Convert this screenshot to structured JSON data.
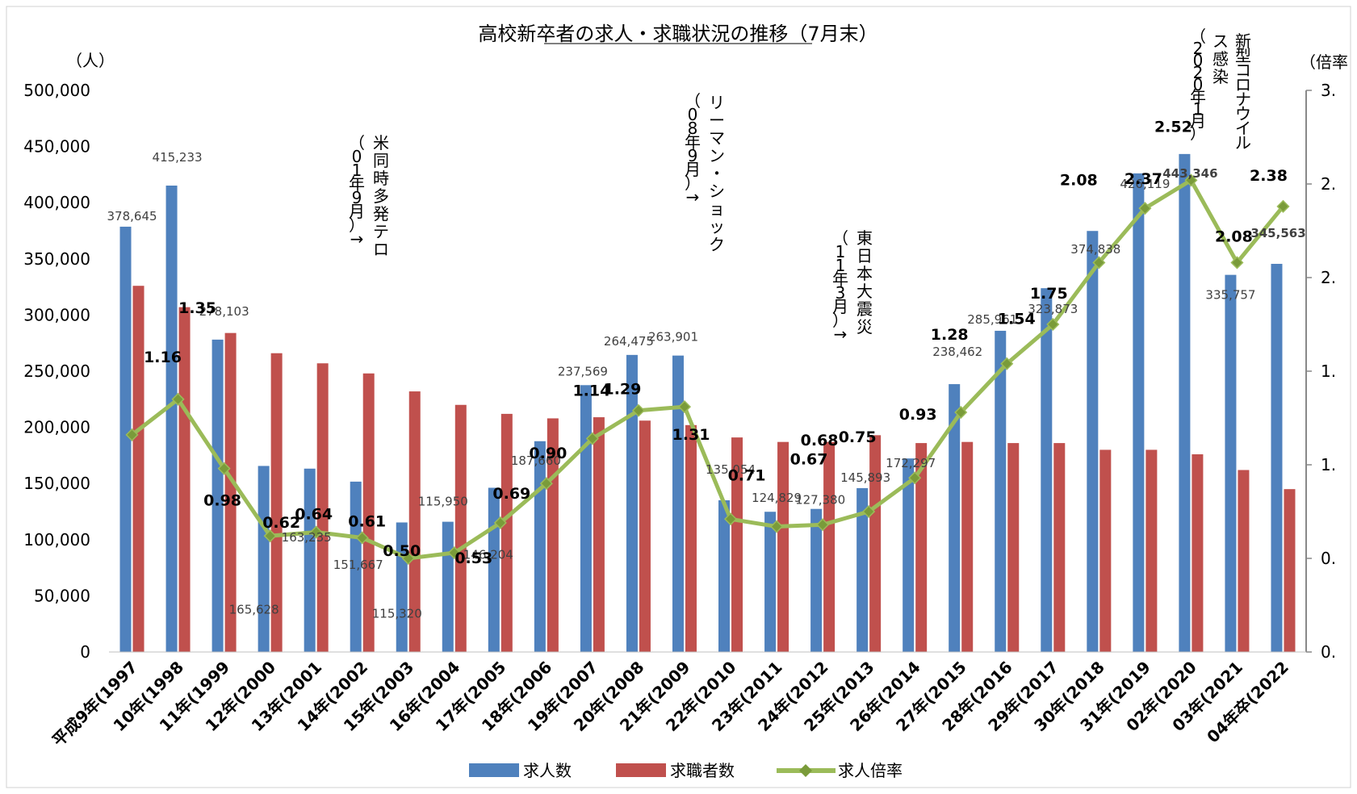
{
  "chart_data": {
    "type": "bar",
    "title": "高校新卒者の求人・求職状況の推移（7月末）",
    "y_left_unit": "（人）",
    "y_right_unit": "（倍率",
    "ylim": [
      0,
      500000
    ],
    "ylim_right": [
      0,
      3.0
    ],
    "yticks": [
      "500,000",
      "450,000",
      "400,000",
      "350,000",
      "300,000",
      "250,000",
      "200,000",
      "150,000",
      "100,000",
      "50,000",
      "0"
    ],
    "yticks_right": [
      "3.",
      "2.",
      "2.",
      "1.",
      "1.",
      "0.",
      "0."
    ],
    "categories": [
      "平成9年(1997",
      "10年(1998",
      "11年(1999",
      "12年(2000",
      "13年(2001",
      "14年(2002",
      "15年(2003",
      "16年(2004",
      "17年(2005",
      "18年(2006",
      "19年(2007",
      "20年(2008",
      "21年(2009",
      "22年(2010",
      "23年(2011",
      "24年(2012",
      "25年(2013",
      "26年(2014",
      "27年(2015",
      "28年(2016",
      "29年(2017",
      "30年(2018",
      "31年(2019",
      "02年(2020",
      "03年(2021",
      "04年卒(2022"
    ],
    "series": [
      {
        "name": "求人数",
        "color": "#4F81BD",
        "values": [
          378645,
          415233,
          278103,
          165628,
          163235,
          151667,
          115320,
          115950,
          146204,
          187660,
          237569,
          264475,
          263901,
          135054,
          124829,
          127380,
          145893,
          172297,
          238462,
          285961,
          323873,
          374838,
          426119,
          443346,
          335757,
          345563
        ],
        "labels": [
          "378,645",
          "415,233",
          "278,103",
          "165,628",
          "163,235",
          "151,667",
          "115,320",
          "115,950",
          "146,204",
          "187,660",
          "237,569",
          "264,475",
          "263,901",
          "135,054",
          "124,829",
          "127,380",
          "145,893",
          "172,297",
          "238,462",
          "285,961",
          "323,873",
          "374,838",
          "426,119",
          "443,346",
          "335,757",
          "345,563"
        ]
      },
      {
        "name": "求職者数",
        "color": "#C0504D",
        "values": [
          326000,
          307000,
          284000,
          266000,
          257000,
          248000,
          232000,
          220000,
          212000,
          208000,
          209000,
          206000,
          202000,
          191000,
          187000,
          187000,
          193000,
          186000,
          187000,
          186000,
          186000,
          180000,
          180000,
          176000,
          162000,
          145000
        ]
      },
      {
        "name": "求人倍率",
        "color": "#9BBB59",
        "axis": "right",
        "values": [
          1.16,
          1.35,
          0.98,
          0.62,
          0.64,
          0.61,
          0.5,
          0.53,
          0.69,
          0.9,
          1.14,
          1.29,
          1.31,
          0.71,
          0.67,
          0.68,
          0.75,
          0.93,
          1.28,
          1.54,
          1.75,
          2.08,
          2.37,
          2.52,
          2.08,
          2.38
        ],
        "labels": [
          "1.16",
          "1.35",
          "0.98",
          "0.62",
          "0.64",
          "0.61",
          "0.50",
          "0.53",
          "0.69",
          "0.90",
          "1.14",
          "1.29",
          "1.31",
          "0.71",
          "0.67",
          "0.68",
          "0.75",
          "0.93",
          "1.28",
          "1.54",
          "1.75",
          "2.08",
          "2.37",
          "2.52",
          "2.08",
          "2.38"
        ],
        "highlight_last_color": "#FF0000",
        "highlight_2020_color": "#A6A6A6"
      }
    ],
    "annotations": [
      "米同時多発テロ（01年9月）→",
      "リーマン・ショック（08年9月）→",
      "東日本大震災（11年3月）→",
      "新型コロナウイルス感染（2020年1月）"
    ],
    "legend": [
      "求人数",
      "求職者数",
      "求人倍率"
    ],
    "legend_position": "bottom",
    "grid": false
  }
}
